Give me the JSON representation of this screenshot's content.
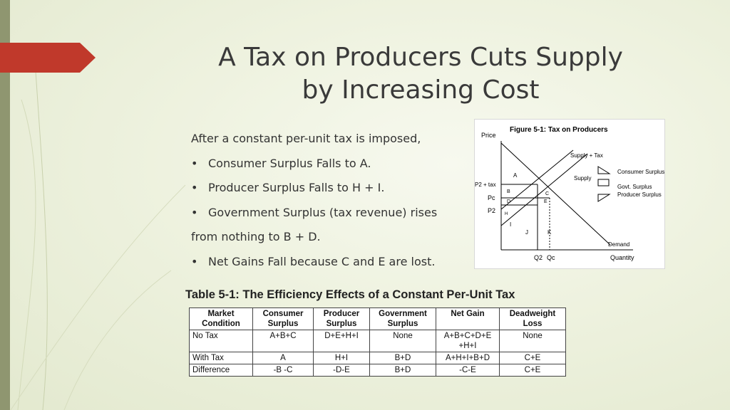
{
  "title": {
    "line1": "A Tax on Producers Cuts Supply",
    "line2": "by Increasing Cost"
  },
  "bullets": {
    "intro": "After a constant per-unit tax is imposed,",
    "items": [
      "Consumer Surplus Falls to A.",
      "Producer Surplus Falls to H + I.",
      "Government Surplus (tax revenue) rises"
    ],
    "continuation": "from nothing to B + D.",
    "last": "Net Gains Fall because C and E are lost."
  },
  "figure": {
    "title": "Figure 5-1: Tax on Producers",
    "price_label": "Price",
    "quantity_label": "Quantity",
    "demand_label": "Demand",
    "supply_label": "Supply",
    "supply_tax_label": "Supply + Tax",
    "p2tax_label": "P2 + tax",
    "pc_label": "Pc",
    "p2_label": "P2",
    "q2_label": "Q2",
    "qc_label": "Qc",
    "regions": [
      "A",
      "B",
      "C",
      "D",
      "E",
      "H",
      "I",
      "J",
      "K"
    ],
    "legend": {
      "consumer": "Consumer Surplus",
      "govt": "Govt. Surplus",
      "producer": "Producer Surplus"
    }
  },
  "table": {
    "title": "Table 5-1: The Efficiency Effects of a Constant Per-Unit Tax",
    "headers": [
      "Market Condition",
      "Consumer Surplus",
      "Producer Surplus",
      "Government Surplus",
      "Net Gain",
      "Deadweight Loss"
    ],
    "rows": [
      [
        "No Tax",
        "A+B+C",
        "D+E+H+I",
        "None",
        "A+B+C+D+E +H+I",
        "None"
      ],
      [
        "With Tax",
        "A",
        "H+I",
        "B+D",
        "A+H+I+B+D",
        "C+E"
      ],
      [
        "Difference",
        "-B -C",
        "-D-E",
        "B+D",
        "-C-E",
        "C+E"
      ]
    ]
  }
}
